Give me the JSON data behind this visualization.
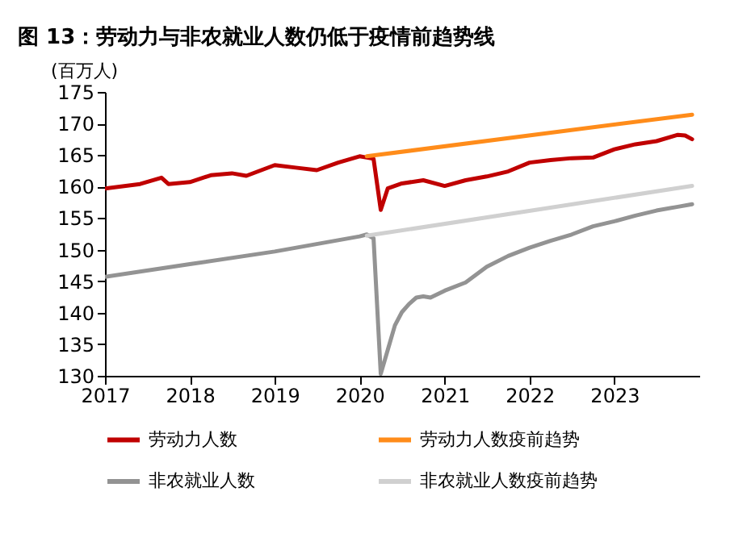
{
  "chart_data": {
    "type": "line",
    "title": "图 13：劳动力与非农就业人数仍低于疫情前趋势线",
    "ylabel": "(百万人)",
    "xlim": [
      "2017-01",
      "2024-01"
    ],
    "xticks": [
      {
        "value": "2017-01",
        "label": "2017"
      },
      {
        "value": "2018-01",
        "label": "2018"
      },
      {
        "value": "2019-01",
        "label": "2019"
      },
      {
        "value": "2020-01",
        "label": "2020"
      },
      {
        "value": "2021-01",
        "label": "2021"
      },
      {
        "value": "2022-01",
        "label": "2022"
      },
      {
        "value": "2023-01",
        "label": "2023"
      }
    ],
    "ylim": [
      130,
      175
    ],
    "yticks": [
      130,
      135,
      140,
      145,
      150,
      155,
      160,
      165,
      170,
      175
    ],
    "grid": false,
    "legend": "bottom",
    "marker": "none",
    "line_style": "solid",
    "series": [
      {
        "name": "劳动力人数",
        "color": "#c00000",
        "x": [
          "2017-01",
          "2017-06",
          "2017-09",
          "2017-10",
          "2018-01",
          "2018-04",
          "2018-07",
          "2018-09",
          "2019-01",
          "2019-04",
          "2019-07",
          "2019-10",
          "2020-01",
          "2020-02",
          "2020-03",
          "2020-04",
          "2020-05",
          "2020-07",
          "2020-10",
          "2021-01",
          "2021-04",
          "2021-07",
          "2021-10",
          "2022-01",
          "2022-04",
          "2022-07",
          "2022-10",
          "2023-01",
          "2023-04",
          "2023-07",
          "2023-10",
          "2023-11",
          "2023-12"
        ],
        "values": [
          159.7,
          160.4,
          161.4,
          160.4,
          160.7,
          161.8,
          162.1,
          161.7,
          163.4,
          163.0,
          162.6,
          163.8,
          164.8,
          164.6,
          164.4,
          156.3,
          159.7,
          160.5,
          161.0,
          160.1,
          161.0,
          161.6,
          162.4,
          163.8,
          164.2,
          164.5,
          164.6,
          165.9,
          166.7,
          167.2,
          168.2,
          168.1,
          167.5
        ]
      },
      {
        "name": "劳动力人数疫前趋势",
        "color": "#ff8c1a",
        "x": [
          "2020-02",
          "2023-12"
        ],
        "values": [
          164.8,
          171.4
        ]
      },
      {
        "name": "非农就业人数",
        "color": "#939393",
        "x": [
          "2017-01",
          "2018-01",
          "2019-01",
          "2020-01",
          "2020-02",
          "2020-03",
          "2020-04",
          "2020-05",
          "2020-06",
          "2020-07",
          "2020-08",
          "2020-09",
          "2020-10",
          "2020-11",
          "2021-01",
          "2021-04",
          "2021-07",
          "2021-10",
          "2022-01",
          "2022-04",
          "2022-07",
          "2022-10",
          "2023-01",
          "2023-04",
          "2023-07",
          "2023-10",
          "2023-12"
        ],
        "values": [
          145.7,
          147.7,
          149.7,
          152.1,
          152.4,
          151.8,
          130.3,
          134.1,
          138.0,
          140.1,
          141.4,
          142.4,
          142.6,
          142.4,
          143.5,
          144.8,
          147.3,
          149.0,
          150.3,
          151.4,
          152.4,
          153.7,
          154.5,
          155.4,
          156.2,
          156.8,
          157.2
        ]
      },
      {
        "name": "非农就业人数疫前趋势",
        "color": "#d0d0d0",
        "x": [
          "2020-02",
          "2023-12"
        ],
        "values": [
          152.2,
          160.1
        ]
      }
    ]
  }
}
